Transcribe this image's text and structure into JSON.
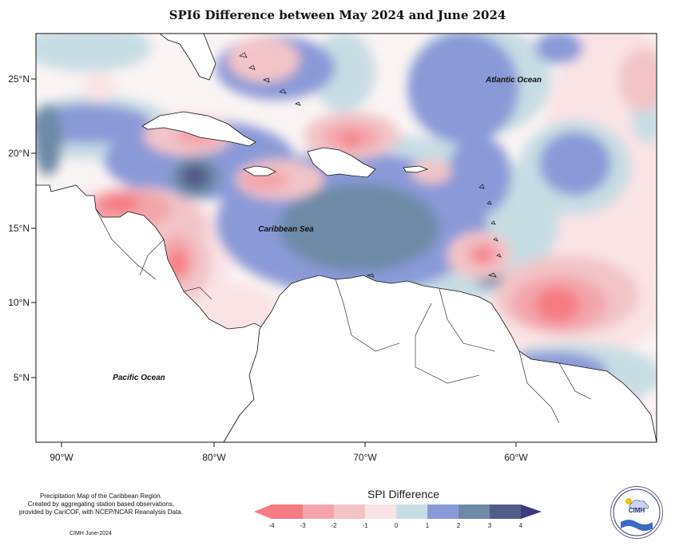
{
  "title": "SPI6 Difference between May 2024 and June 2024",
  "axes": {
    "x_ticks": [
      "90°W",
      "80°W",
      "70°W",
      "60°W"
    ],
    "y_ticks": [
      "25°N",
      "20°N",
      "15°N",
      "10°N",
      "5°N"
    ]
  },
  "labels": {
    "atlantic": "Atlantic Ocean",
    "caribbean": "Caribbean Sea",
    "pacific": "Pacific Ocean"
  },
  "legend": {
    "title": "SPI Difference",
    "ticks": [
      "-4",
      "-3",
      "-2",
      "-1",
      "0",
      "1",
      "2",
      "3",
      "4"
    ],
    "colors": [
      "#f57b82",
      "#f3a5ab",
      "#f2c4c8",
      "#fae3e5",
      "#fbf4f4",
      "#c7dde4",
      "#8a9ad8",
      "#6d8aa6",
      "#525c88",
      "#3b3a80"
    ]
  },
  "footer": {
    "note_lines": [
      "Precipitation Map of the Caribbean Region.",
      "Created by aggregating station based observations,",
      "provided by CariCOF, with NCEP/NCAR Reanalysis Data."
    ],
    "credit": "CIMH June-2024"
  },
  "logo": {
    "text": "CIMH"
  }
}
